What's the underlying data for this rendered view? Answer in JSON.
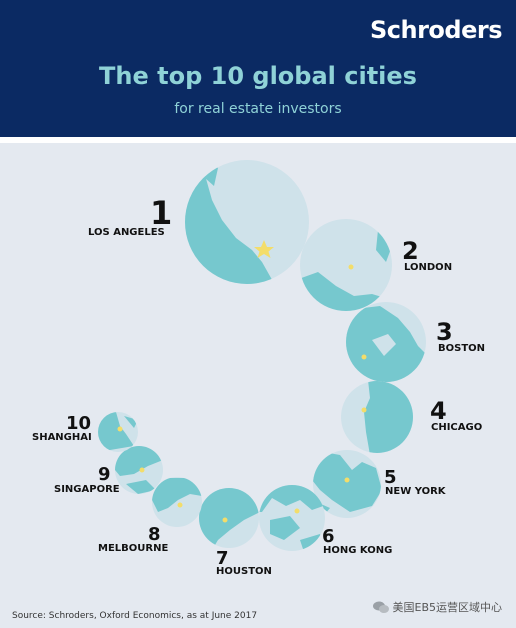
{
  "header": {
    "brand": "Schroders",
    "title": "The top 10 global cities",
    "subtitle": "for real estate investors"
  },
  "colors": {
    "header_bg": "#0b2a63",
    "title_text": "#8fd2d7",
    "ocean": "#cfe2ea",
    "land": "#76c8ce",
    "marker": "#f3dd6a"
  },
  "cities": [
    {
      "rank": "1",
      "name": "LOS ANGELES"
    },
    {
      "rank": "2",
      "name": "LONDON"
    },
    {
      "rank": "3",
      "name": "BOSTON"
    },
    {
      "rank": "4",
      "name": "CHICAGO"
    },
    {
      "rank": "5",
      "name": "NEW YORK"
    },
    {
      "rank": "6",
      "name": "HONG KONG"
    },
    {
      "rank": "7",
      "name": "HOUSTON"
    },
    {
      "rank": "8",
      "name": "MELBOURNE"
    },
    {
      "rank": "9",
      "name": "SINGAPORE"
    },
    {
      "rank": "10",
      "name": "SHANGHAI"
    }
  ],
  "footer": {
    "source": "Source: Schroders, Oxford Economics, as at June 2017",
    "watermark": "美国EB5运营区域中心"
  }
}
